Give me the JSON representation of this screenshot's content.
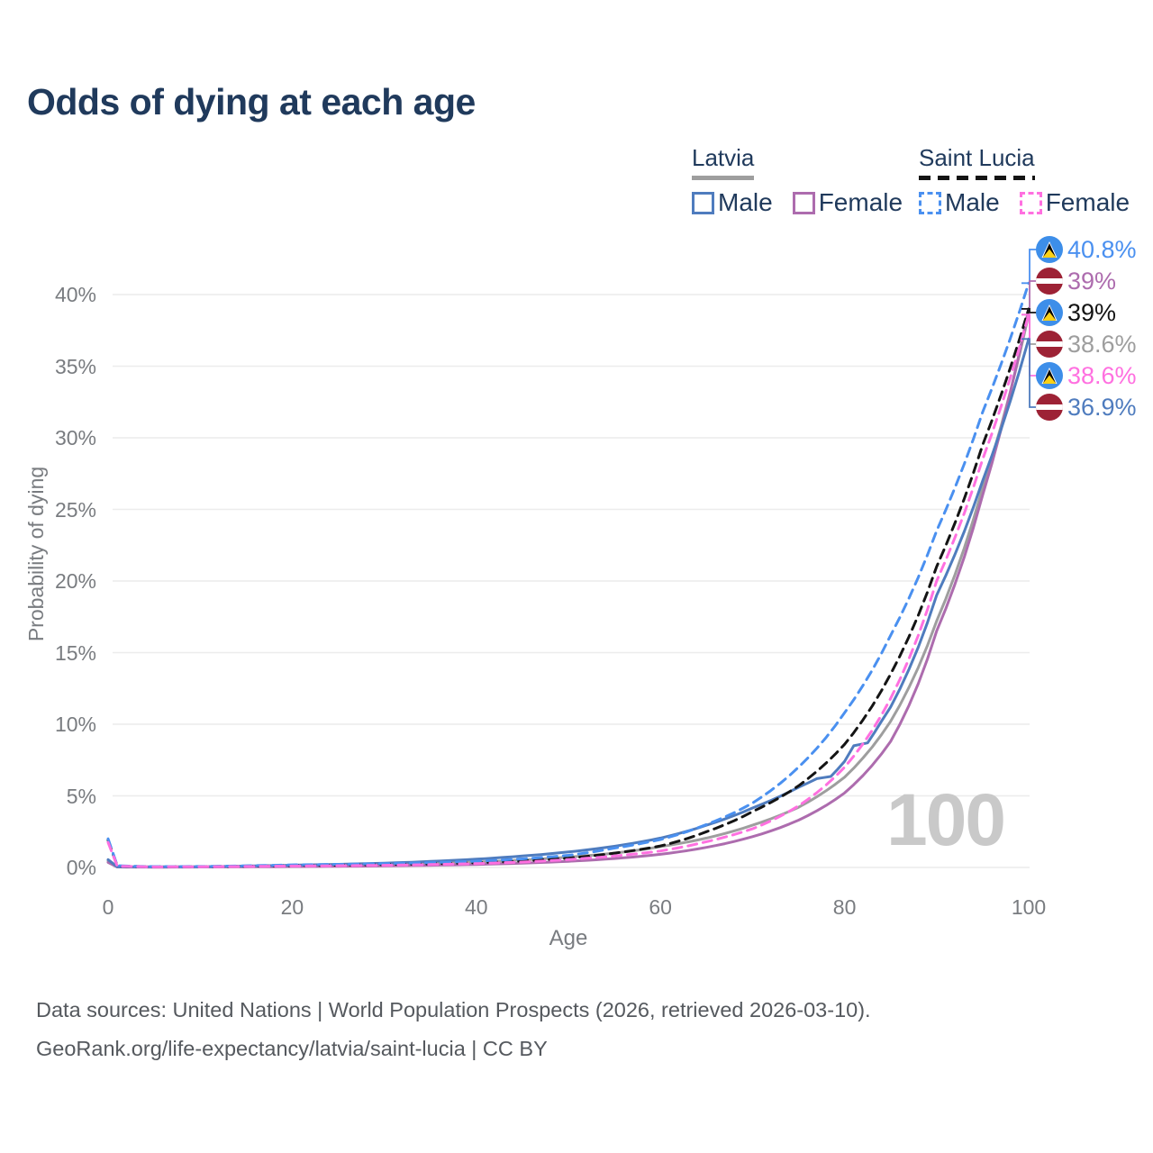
{
  "title": "Odds of dying at each age",
  "watermark": "100",
  "colors": {
    "title_text": "#203a5c",
    "axis_text": "#797c80",
    "gridline": "#ececec",
    "watermark": "#c9c9c9",
    "footer_text": "#55595e",
    "latvia_flag_red": "#9d2235",
    "saint_lucia_flag_blue": "#3d8ee9",
    "saint_lucia_flag_yellow": "#fcd116"
  },
  "legend": {
    "groups": [
      {
        "id": "latvia",
        "label": "Latvia",
        "underline_series": "Latvia Total",
        "items": [
          {
            "label": "Male",
            "series": "Latvia Male"
          },
          {
            "label": "Female",
            "series": "Latvia Female"
          }
        ]
      },
      {
        "id": "saint-lucia",
        "label": "Saint Lucia",
        "underline_series": "Saint Lucia Total",
        "items": [
          {
            "label": "Male",
            "series": "Saint Lucia Male"
          },
          {
            "label": "Female",
            "series": "Saint Lucia Female"
          }
        ]
      }
    ]
  },
  "axes": {
    "x": {
      "label": "Age",
      "ticks": [
        {
          "value": 0,
          "label": "0"
        },
        {
          "value": 20,
          "label": "20"
        },
        {
          "value": 40,
          "label": "40"
        },
        {
          "value": 60,
          "label": "60"
        },
        {
          "value": 80,
          "label": "80"
        },
        {
          "value": 100,
          "label": "100"
        }
      ]
    },
    "y": {
      "label": "Probability of dying",
      "ticks": [
        {
          "value": 0,
          "label": "0%"
        },
        {
          "value": 5,
          "label": "5%"
        },
        {
          "value": 10,
          "label": "10%"
        },
        {
          "value": 15,
          "label": "15%"
        },
        {
          "value": 20,
          "label": "20%"
        },
        {
          "value": 25,
          "label": "25%"
        },
        {
          "value": 30,
          "label": "30%"
        },
        {
          "value": 35,
          "label": "35%"
        },
        {
          "value": 40,
          "label": "40%"
        }
      ]
    }
  },
  "chart_data": {
    "type": "line",
    "xlabel": "Age",
    "ylabel": "Probability of dying",
    "xlim": [
      0,
      100
    ],
    "ylim": [
      0,
      42
    ],
    "grid": "horizontal",
    "x_unit": "age (years)",
    "y_unit": "probability of dying (%)",
    "series": [
      {
        "name": "Latvia Total",
        "country": "Latvia",
        "sex": "Total",
        "color": "#9e9e9e",
        "dash": "solid",
        "points": [
          [
            0,
            0.45
          ],
          [
            1,
            0.035
          ],
          [
            5,
            0.03
          ],
          [
            10,
            0.04
          ],
          [
            15,
            0.07
          ],
          [
            20,
            0.11
          ],
          [
            25,
            0.15
          ],
          [
            30,
            0.2
          ],
          [
            35,
            0.28
          ],
          [
            40,
            0.38
          ],
          [
            45,
            0.52
          ],
          [
            50,
            0.72
          ],
          [
            55,
            1.0
          ],
          [
            60,
            1.45
          ],
          [
            65,
            2.05
          ],
          [
            70,
            2.95
          ],
          [
            75,
            4.2
          ],
          [
            80,
            6.3
          ],
          [
            85,
            10.2
          ],
          [
            90,
            17.2
          ],
          [
            95,
            26.5
          ],
          [
            100,
            38.6
          ]
        ]
      },
      {
        "name": "Latvia Female",
        "country": "Latvia",
        "sex": "Female",
        "color": "#ad6cae",
        "dash": "solid",
        "points": [
          [
            0,
            0.35
          ],
          [
            1,
            0.03
          ],
          [
            5,
            0.02
          ],
          [
            10,
            0.03
          ],
          [
            15,
            0.04
          ],
          [
            20,
            0.06
          ],
          [
            25,
            0.08
          ],
          [
            30,
            0.11
          ],
          [
            35,
            0.15
          ],
          [
            40,
            0.21
          ],
          [
            45,
            0.3
          ],
          [
            50,
            0.43
          ],
          [
            55,
            0.62
          ],
          [
            60,
            0.92
          ],
          [
            65,
            1.4
          ],
          [
            70,
            2.15
          ],
          [
            75,
            3.3
          ],
          [
            80,
            5.2
          ],
          [
            85,
            8.8
          ],
          [
            90,
            16.5
          ],
          [
            95,
            26.0
          ],
          [
            100,
            39.0
          ]
        ]
      },
      {
        "name": "Latvia Male",
        "country": "Latvia",
        "sex": "Male",
        "color": "#4f7cbe",
        "dash": "solid",
        "points": [
          [
            0,
            0.55
          ],
          [
            1,
            0.045
          ],
          [
            5,
            0.04
          ],
          [
            10,
            0.05
          ],
          [
            15,
            0.1
          ],
          [
            20,
            0.16
          ],
          [
            25,
            0.22
          ],
          [
            30,
            0.3
          ],
          [
            35,
            0.42
          ],
          [
            40,
            0.58
          ],
          [
            45,
            0.8
          ],
          [
            50,
            1.08
          ],
          [
            55,
            1.48
          ],
          [
            60,
            2.05
          ],
          [
            65,
            2.95
          ],
          [
            70,
            4.15
          ],
          [
            75,
            5.6
          ],
          [
            77,
            6.2
          ],
          [
            78.5,
            6.35
          ],
          [
            80,
            7.4
          ],
          [
            81,
            8.5
          ],
          [
            82.5,
            8.7
          ],
          [
            84,
            10.2
          ],
          [
            85,
            11.2
          ],
          [
            90,
            19.0
          ],
          [
            95,
            27.0
          ],
          [
            100,
            36.9
          ]
        ]
      },
      {
        "name": "Saint Lucia Total",
        "country": "Saint Lucia",
        "sex": "Total",
        "color": "#141414",
        "dash": "dashed",
        "points": [
          [
            0,
            1.9
          ],
          [
            1,
            0.1
          ],
          [
            5,
            0.05
          ],
          [
            10,
            0.06
          ],
          [
            15,
            0.09
          ],
          [
            20,
            0.13
          ],
          [
            25,
            0.16
          ],
          [
            30,
            0.2
          ],
          [
            35,
            0.25
          ],
          [
            40,
            0.33
          ],
          [
            45,
            0.45
          ],
          [
            50,
            0.65
          ],
          [
            55,
            1.0
          ],
          [
            60,
            1.5
          ],
          [
            65,
            2.5
          ],
          [
            70,
            3.9
          ],
          [
            75,
            5.7
          ],
          [
            80,
            8.6
          ],
          [
            85,
            13.5
          ],
          [
            90,
            21.0
          ],
          [
            95,
            29.5
          ],
          [
            100,
            39.0
          ]
        ]
      },
      {
        "name": "Saint Lucia Male",
        "country": "Saint Lucia",
        "sex": "Male",
        "color": "#4a90f0",
        "dash": "dashed",
        "points": [
          [
            0,
            2.0
          ],
          [
            1,
            0.12
          ],
          [
            5,
            0.06
          ],
          [
            10,
            0.07
          ],
          [
            15,
            0.12
          ],
          [
            20,
            0.18
          ],
          [
            25,
            0.22
          ],
          [
            30,
            0.27
          ],
          [
            35,
            0.34
          ],
          [
            40,
            0.44
          ],
          [
            45,
            0.6
          ],
          [
            50,
            0.85
          ],
          [
            55,
            1.35
          ],
          [
            60,
            1.95
          ],
          [
            65,
            3.0
          ],
          [
            70,
            4.5
          ],
          [
            75,
            7.0
          ],
          [
            80,
            10.8
          ],
          [
            85,
            16.2
          ],
          [
            90,
            23.5
          ],
          [
            95,
            31.8
          ],
          [
            100,
            40.8
          ]
        ]
      },
      {
        "name": "Saint Lucia Female",
        "country": "Saint Lucia",
        "sex": "Female",
        "color": "#ff70e0",
        "dash": "dashed",
        "points": [
          [
            0,
            1.75
          ],
          [
            1,
            0.09
          ],
          [
            5,
            0.04
          ],
          [
            10,
            0.05
          ],
          [
            15,
            0.07
          ],
          [
            20,
            0.1
          ],
          [
            25,
            0.12
          ],
          [
            30,
            0.15
          ],
          [
            35,
            0.2
          ],
          [
            40,
            0.27
          ],
          [
            45,
            0.38
          ],
          [
            50,
            0.55
          ],
          [
            55,
            0.8
          ],
          [
            60,
            1.15
          ],
          [
            65,
            1.8
          ],
          [
            70,
            2.7
          ],
          [
            75,
            4.3
          ],
          [
            80,
            7.0
          ],
          [
            85,
            11.8
          ],
          [
            90,
            20.0
          ],
          [
            95,
            28.5
          ],
          [
            100,
            38.6
          ]
        ]
      }
    ],
    "end_labels": [
      {
        "series": "Saint Lucia Male",
        "text": "40.8%",
        "value": 40.8,
        "flag": "saint-lucia"
      },
      {
        "series": "Latvia Female",
        "text": "39%",
        "value": 39.0,
        "flag": "latvia"
      },
      {
        "series": "Saint Lucia Total",
        "text": "39%",
        "value": 39.0,
        "flag": "saint-lucia"
      },
      {
        "series": "Latvia Total",
        "text": "38.6%",
        "value": 38.6,
        "flag": "latvia"
      },
      {
        "series": "Saint Lucia Female",
        "text": "38.6%",
        "value": 38.6,
        "flag": "saint-lucia"
      },
      {
        "series": "Latvia Male",
        "text": "36.9%",
        "value": 36.9,
        "flag": "latvia"
      }
    ]
  },
  "footer": {
    "line1": "Data sources: United Nations | World Population Prospects (2026, retrieved 2026-03-10).",
    "line2": "GeoRank.org/life-expectancy/latvia/saint-lucia | CC BY"
  }
}
